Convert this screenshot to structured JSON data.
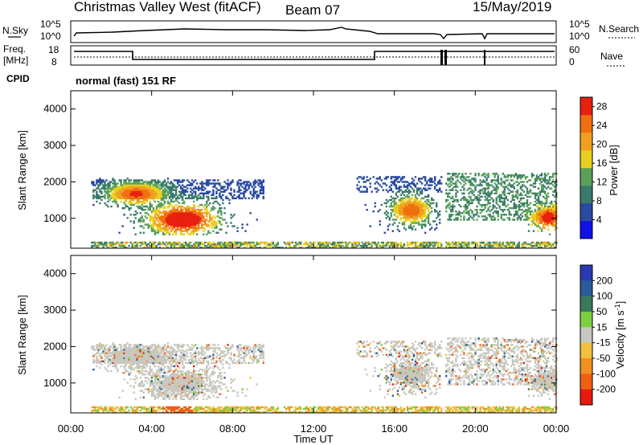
{
  "header": {
    "station": "Christmas Valley West (fitACF)",
    "beam": "Beam 07",
    "date": "15/May/2019"
  },
  "summary": {
    "nsky_label": "N.Sky",
    "nsearch_label": "N.Search",
    "freq_label_line1": "Freq.",
    "freq_label_line2": "[MHz]",
    "nave_label": "Nave",
    "cpid_label": "CPID",
    "cpid_value": "normal (fast) 151 RF",
    "noise_left_ticks": [
      "10^5",
      "10^0"
    ],
    "noise_right_ticks": [
      "10^5",
      "10^0"
    ],
    "freq_ticks": [
      "18",
      "8"
    ],
    "nave_ticks": [
      "60",
      "0"
    ]
  },
  "colors": {
    "power_scale": [
      "#1010e8",
      "#2a4aa0",
      "#3a7a6a",
      "#5aa05a",
      "#e8d020",
      "#f0a020",
      "#f07010",
      "#e82010"
    ],
    "velocity_scale": [
      "#2a3ab0",
      "#2a5a9a",
      "#3a7a5a",
      "#7ad040",
      "#c8c8c0",
      "#f0c040",
      "#f09020",
      "#f06010",
      "#e81810"
    ]
  },
  "chart_data": [
    {
      "type": "heatmap",
      "panel": "power",
      "x_range": [
        "00:00",
        "00:00"
      ],
      "xticks": [
        "00:00",
        "04:00",
        "08:00",
        "12:00",
        "16:00",
        "20:00",
        "00:00"
      ],
      "ylabel": "Slant Range [km]",
      "ylim": [
        180,
        4500
      ],
      "yticks": [
        "1000",
        "2000",
        "3000",
        "4000"
      ],
      "colorbar_label": "Power [dB]",
      "colorbar_ticks": [
        "4",
        "8",
        "12",
        "16",
        "20",
        "24",
        "28"
      ],
      "colorbar_range": [
        0,
        30
      ],
      "data_gaps_hours": [
        [
          18.3,
          18.45
        ]
      ],
      "echo_regions": [
        {
          "t_start": 1.0,
          "t_end": 9.8,
          "r_min": 250,
          "r_max": 2100,
          "peak_power_db": 30
        },
        {
          "t_start": 14.0,
          "t_end": 18.3,
          "r_min": 500,
          "r_max": 2200,
          "peak_power_db": 26
        },
        {
          "t_start": 18.5,
          "t_end": 24.0,
          "r_min": 500,
          "r_max": 2300,
          "peak_power_db": 28
        }
      ]
    },
    {
      "type": "heatmap",
      "panel": "velocity",
      "x_range": [
        "00:00",
        "00:00"
      ],
      "xticks": [
        "00:00",
        "04:00",
        "08:00",
        "12:00",
        "16:00",
        "20:00",
        "00:00"
      ],
      "xlabel": "Time UT",
      "ylabel": "Slant Range [km]",
      "ylim": [
        180,
        4500
      ],
      "yticks": [
        "1000",
        "2000",
        "3000",
        "4000"
      ],
      "colorbar_label": "Velocity [m s^-1]",
      "colorbar_ticks": [
        "200",
        "100",
        "50",
        "15",
        "-15",
        "-50",
        "-100",
        "-200"
      ],
      "colorbar_range": [
        -250,
        250
      ],
      "ground_scatter_color": "#c8c8c0"
    }
  ]
}
